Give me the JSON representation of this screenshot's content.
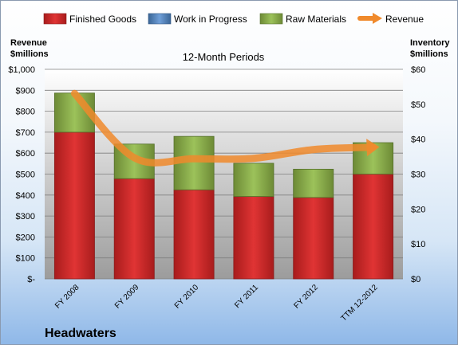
{
  "chart_data": {
    "type": "bar",
    "stacked": true,
    "company": "Headwaters",
    "title": "12-Month Periods",
    "ylabel_left": [
      "Revenue",
      "$millions"
    ],
    "ylabel_right": [
      "Inventory",
      "$millions"
    ],
    "categories": [
      "FY 2008",
      "FY 2009",
      "FY 2010",
      "FY 2011",
      "FY 2012",
      "TTM 12-2012"
    ],
    "y_left_ticks": [
      "$-",
      "$100",
      "$200",
      "$300",
      "$400",
      "$500",
      "$600",
      "$700",
      "$800",
      "$900",
      "$1,000"
    ],
    "y_right_ticks": [
      "$0",
      "$10",
      "$20",
      "$30",
      "$40",
      "$50",
      "$60"
    ],
    "ylim_left": [
      0,
      1000
    ],
    "ylim_right": [
      0,
      60
    ],
    "legend_position": "top",
    "grid": true,
    "series": [
      {
        "name": "Finished Goods",
        "axis": "right",
        "kind": "bar",
        "color": "#d62b2b",
        "values": [
          42.0,
          28.7,
          25.5,
          23.6,
          23.3,
          30.0
        ]
      },
      {
        "name": "Work in Progress",
        "axis": "right",
        "kind": "bar",
        "color": "#4f81bd",
        "values": [
          0,
          0,
          0,
          0,
          0,
          0
        ]
      },
      {
        "name": "Raw Materials",
        "axis": "right",
        "kind": "bar",
        "color": "#8aad4a",
        "values": [
          11.2,
          9.9,
          15.3,
          9.5,
          8.1,
          9.0
        ]
      },
      {
        "name": "Revenue",
        "axis": "left",
        "kind": "line",
        "color": "#f08a2c",
        "values": [
          885,
          578,
          573,
          575,
          617,
          628
        ]
      }
    ]
  }
}
